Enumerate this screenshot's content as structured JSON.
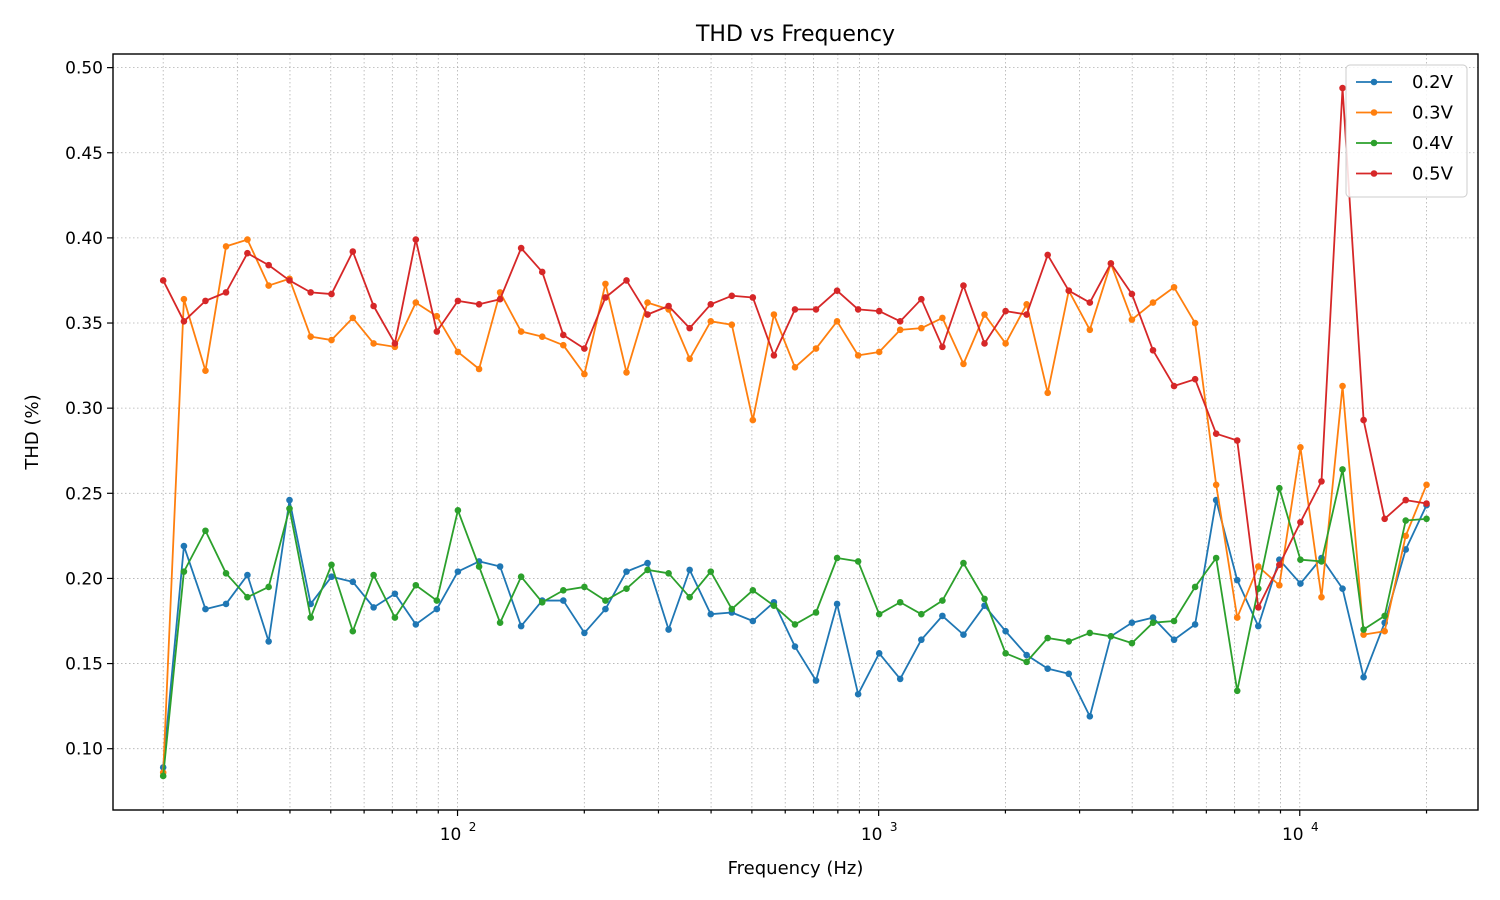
{
  "chart_data": {
    "type": "line",
    "title": "THD vs Frequency",
    "xlabel": "Frequency (Hz)",
    "ylabel": "THD (%)",
    "xscale": "log",
    "xlim": [
      15.2,
      26500
    ],
    "ylim": [
      0.064,
      0.508
    ],
    "grid": true,
    "legend_position": "top-right",
    "x_major_ticks": [
      100,
      1000,
      10000
    ],
    "x_major_tick_labels": [
      {
        "base": "10",
        "exp": "2"
      },
      {
        "base": "10",
        "exp": "3"
      },
      {
        "base": "10",
        "exp": "4"
      }
    ],
    "y_ticks": [
      0.1,
      0.15,
      0.2,
      0.25,
      0.3,
      0.35,
      0.4,
      0.45,
      0.5
    ],
    "y_tick_labels": [
      "0.10",
      "0.15",
      "0.20",
      "0.25",
      "0.30",
      "0.35",
      "0.40",
      "0.45",
      "0.50"
    ],
    "x": [
      20,
      22.4,
      25.2,
      28.2,
      31.7,
      35.6,
      39.9,
      44.8,
      50.2,
      56.4,
      63.2,
      71,
      79.6,
      89.3,
      100.2,
      112.5,
      126.2,
      141.6,
      158.9,
      178.3,
      200.1,
      224.5,
      251.9,
      282.6,
      317.1,
      355.8,
      399.3,
      448,
      502.6,
      564,
      632.8,
      710,
      796.7,
      893.9,
      1003,
      1125,
      1263,
      1417,
      1590,
      1784,
      2002,
      2246,
      2520,
      2828,
      3173,
      3560,
      3994,
      4482,
      5029,
      5643,
      6331,
      7104,
      7971,
      8944,
      10036,
      11261,
      12635,
      14177,
      15907,
      17849,
      20000
    ],
    "series": [
      {
        "name": "0.2V",
        "color": "#1f77b4",
        "values": [
          0.089,
          0.219,
          0.182,
          0.185,
          0.202,
          0.163,
          0.246,
          0.185,
          0.201,
          0.198,
          0.183,
          0.191,
          0.173,
          0.182,
          0.204,
          0.21,
          0.207,
          0.172,
          0.187,
          0.187,
          0.168,
          0.182,
          0.204,
          0.209,
          0.17,
          0.205,
          0.179,
          0.18,
          0.175,
          0.186,
          0.16,
          0.14,
          0.185,
          0.132,
          0.156,
          0.141,
          0.164,
          0.178,
          0.167,
          0.184,
          0.169,
          0.155,
          0.147,
          0.144,
          0.119,
          0.166,
          0.174,
          0.177,
          0.164,
          0.173,
          0.246,
          0.199,
          0.172,
          0.211,
          0.197,
          0.212,
          0.194,
          0.142,
          0.174,
          0.217,
          0.243
        ]
      },
      {
        "name": "0.3V",
        "color": "#ff7f0e",
        "values": [
          0.086,
          0.364,
          0.322,
          0.395,
          0.399,
          0.372,
          0.376,
          0.342,
          0.34,
          0.353,
          0.338,
          0.336,
          0.362,
          0.354,
          0.333,
          0.323,
          0.368,
          0.345,
          0.342,
          0.337,
          0.32,
          0.373,
          0.321,
          0.362,
          0.358,
          0.329,
          0.351,
          0.349,
          0.293,
          0.355,
          0.324,
          0.335,
          0.351,
          0.331,
          0.333,
          0.346,
          0.347,
          0.353,
          0.326,
          0.355,
          0.338,
          0.361,
          0.309,
          0.369,
          0.346,
          0.385,
          0.352,
          0.362,
          0.371,
          0.35,
          0.255,
          0.177,
          0.207,
          0.196,
          0.277,
          0.189,
          0.313,
          0.167,
          0.169,
          0.225,
          0.255
        ]
      },
      {
        "name": "0.4V",
        "color": "#2ca02c",
        "values": [
          0.084,
          0.204,
          0.228,
          0.203,
          0.189,
          0.195,
          0.241,
          0.177,
          0.208,
          0.169,
          0.202,
          0.177,
          0.196,
          0.187,
          0.24,
          0.207,
          0.174,
          0.201,
          0.186,
          0.193,
          0.195,
          0.187,
          0.194,
          0.205,
          0.203,
          0.189,
          0.204,
          0.182,
          0.193,
          0.184,
          0.173,
          0.18,
          0.212,
          0.21,
          0.179,
          0.186,
          0.179,
          0.187,
          0.209,
          0.188,
          0.156,
          0.151,
          0.165,
          0.163,
          0.168,
          0.166,
          0.162,
          0.174,
          0.175,
          0.195,
          0.212,
          0.134,
          0.194,
          0.253,
          0.211,
          0.21,
          0.264,
          0.17,
          0.178,
          0.234,
          0.235
        ]
      },
      {
        "name": "0.5V",
        "color": "#d62728",
        "values": [
          0.375,
          0.351,
          0.363,
          0.368,
          0.391,
          0.384,
          0.375,
          0.368,
          0.367,
          0.392,
          0.36,
          0.338,
          0.399,
          0.345,
          0.363,
          0.361,
          0.364,
          0.394,
          0.38,
          0.343,
          0.335,
          0.365,
          0.375,
          0.355,
          0.36,
          0.347,
          0.361,
          0.366,
          0.365,
          0.331,
          0.358,
          0.358,
          0.369,
          0.358,
          0.357,
          0.351,
          0.364,
          0.336,
          0.372,
          0.338,
          0.357,
          0.355,
          0.39,
          0.369,
          0.362,
          0.385,
          0.367,
          0.334,
          0.313,
          0.317,
          0.285,
          0.281,
          0.183,
          0.208,
          0.233,
          0.257,
          0.488,
          0.293,
          0.235,
          0.246,
          0.244
        ]
      }
    ]
  }
}
